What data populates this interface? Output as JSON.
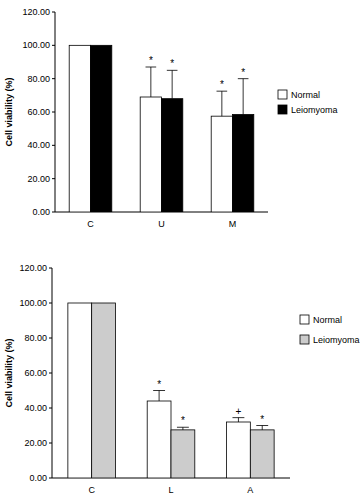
{
  "chart_data": [
    {
      "type": "bar",
      "y_label": "Cell viability (%)",
      "categories": [
        "C",
        "U",
        "M"
      ],
      "series": [
        {
          "name": "Normal",
          "color": "#ffffff",
          "values": [
            100,
            69,
            57.5
          ],
          "errors": [
            0,
            18,
            15
          ],
          "significance": [
            null,
            "*",
            "*"
          ]
        },
        {
          "name": "Leiomyoma",
          "color": "#000000",
          "values": [
            100,
            68,
            58.5
          ],
          "errors": [
            0,
            17,
            21.5
          ],
          "significance": [
            null,
            "*",
            "*"
          ]
        }
      ],
      "ylim": [
        0,
        120
      ],
      "yticks": [
        {
          "value": 0,
          "label": "0.00"
        },
        {
          "value": 20,
          "label": "20.00"
        },
        {
          "value": 40,
          "label": "40.00"
        },
        {
          "value": 60,
          "label": "60.00"
        },
        {
          "value": 80,
          "label": "80.00"
        },
        {
          "value": 100,
          "label": "100.00"
        },
        {
          "value": 120,
          "label": "120.00"
        }
      ],
      "grid": false,
      "legend": "right"
    },
    {
      "type": "bar",
      "y_label": "Cell viability (%)",
      "categories": [
        "C",
        "L",
        "A"
      ],
      "series": [
        {
          "name": "Normal",
          "color": "#ffffff",
          "values": [
            100,
            44,
            32
          ],
          "errors": [
            0,
            6,
            2.5
          ],
          "significance": [
            null,
            "*",
            "+"
          ]
        },
        {
          "name": "Leiomyoma",
          "color": "#cccccc",
          "values": [
            100,
            27.5,
            27.5
          ],
          "errors": [
            0,
            1.5,
            2.5
          ],
          "significance": [
            null,
            "*",
            "*"
          ]
        }
      ],
      "ylim": [
        0,
        120
      ],
      "yticks": [
        {
          "value": 0,
          "label": "0.00"
        },
        {
          "value": 20,
          "label": "20.00"
        },
        {
          "value": 40,
          "label": "40.00"
        },
        {
          "value": 60,
          "label": "60.00"
        },
        {
          "value": 80,
          "label": "80.00"
        },
        {
          "value": 100,
          "label": "100.00"
        },
        {
          "value": 120,
          "label": "120.00"
        }
      ],
      "grid": false,
      "legend": "right"
    }
  ]
}
